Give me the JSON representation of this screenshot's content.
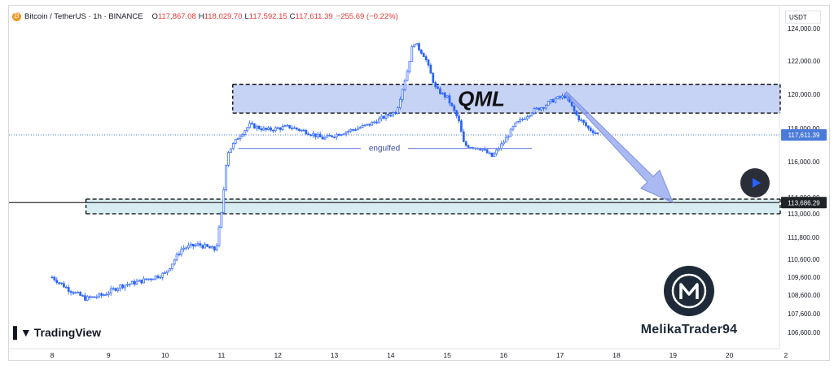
{
  "header": {
    "symbol": "Bitcoin / TetherUS · 1h · BINANCE",
    "open_label": "O",
    "open": "117,867.08",
    "high_label": "H",
    "high": "118,029.70",
    "low_label": "L",
    "low": "117,592.15",
    "close_label": "C",
    "close": "117,611.39",
    "change": "−255.69 (−0.22%)"
  },
  "currency": "USDT",
  "brand": "TradingView",
  "watermark": "MelikaTrader94",
  "colors": {
    "up": "#26a69a",
    "down": "#ef5350",
    "candle": "#2962ff",
    "zone_blue": "#b3c4f2",
    "zone_teal": "#cde9ee",
    "arrow": "#8ea2ee",
    "last_price": "#4a7bd9"
  },
  "chart_data": {
    "type": "candlestick",
    "title": "",
    "xlabel": "",
    "ylabel": "",
    "x_tick_labels": [
      "8",
      "9",
      "10",
      "11",
      "12",
      "13",
      "14",
      "15",
      "16",
      "17",
      "18",
      "19",
      "20",
      "2"
    ],
    "y_tick_labels": [
      "124,000.00",
      "122,000.00",
      "120,000.00",
      "118,000.00",
      "116,000.00",
      "114,000.00",
      "113,000.00",
      "111,800.00",
      "110,600.00",
      "109,600.00",
      "108,600.00",
      "107,600.00",
      "106,600.00"
    ],
    "last_price": "117,611.39",
    "marked_price": "113,686.29",
    "price_path": [
      [
        "8.0",
        109600
      ],
      [
        "8.3",
        108900
      ],
      [
        "8.6",
        108400
      ],
      [
        "8.9",
        108600
      ],
      [
        "9.2",
        109100
      ],
      [
        "9.6",
        109400
      ],
      [
        "10.0",
        109800
      ],
      [
        "10.3",
        111200
      ],
      [
        "10.6",
        111400
      ],
      [
        "10.9",
        111100
      ],
      [
        "11.0",
        113000
      ],
      [
        "11.1",
        116500
      ],
      [
        "11.3",
        117500
      ],
      [
        "11.5",
        118200
      ],
      [
        "11.8",
        117900
      ],
      [
        "12.2",
        118100
      ],
      [
        "12.5",
        117800
      ],
      [
        "12.8",
        117400
      ],
      [
        "13.2",
        117800
      ],
      [
        "13.6",
        118200
      ],
      [
        "13.9",
        118700
      ],
      [
        "14.1",
        119000
      ],
      [
        "14.3",
        121500
      ],
      [
        "14.4",
        123200
      ],
      [
        "14.6",
        122300
      ],
      [
        "14.8",
        120300
      ],
      [
        "15.0",
        119800
      ],
      [
        "15.2",
        118500
      ],
      [
        "15.3",
        117000
      ],
      [
        "15.6",
        116800
      ],
      [
        "15.8",
        116300
      ],
      [
        "16.0",
        117200
      ],
      [
        "16.2",
        118200
      ],
      [
        "16.5",
        119000
      ],
      [
        "16.7",
        119300
      ],
      [
        "16.9",
        119700
      ],
      [
        "17.1",
        119900
      ],
      [
        "17.3",
        118700
      ],
      [
        "17.5",
        118000
      ],
      [
        "17.7",
        117611
      ]
    ],
    "zones": [
      {
        "label": "QML",
        "y_top": 120600,
        "y_bottom": 118900,
        "x_start": "11.2",
        "x_end": "20.9"
      },
      {
        "label": "",
        "y_top": 113900,
        "y_bottom": 113000,
        "x_start": "8.6",
        "x_end": "20.9"
      }
    ],
    "annotations": [
      {
        "text": "engulfed",
        "y": 116800
      },
      {
        "text": "QML",
        "y": 119700
      }
    ],
    "arrow": {
      "from_x": "17.1",
      "from_y": 120100,
      "to_x": "19.0",
      "to_y": 113686
    }
  }
}
